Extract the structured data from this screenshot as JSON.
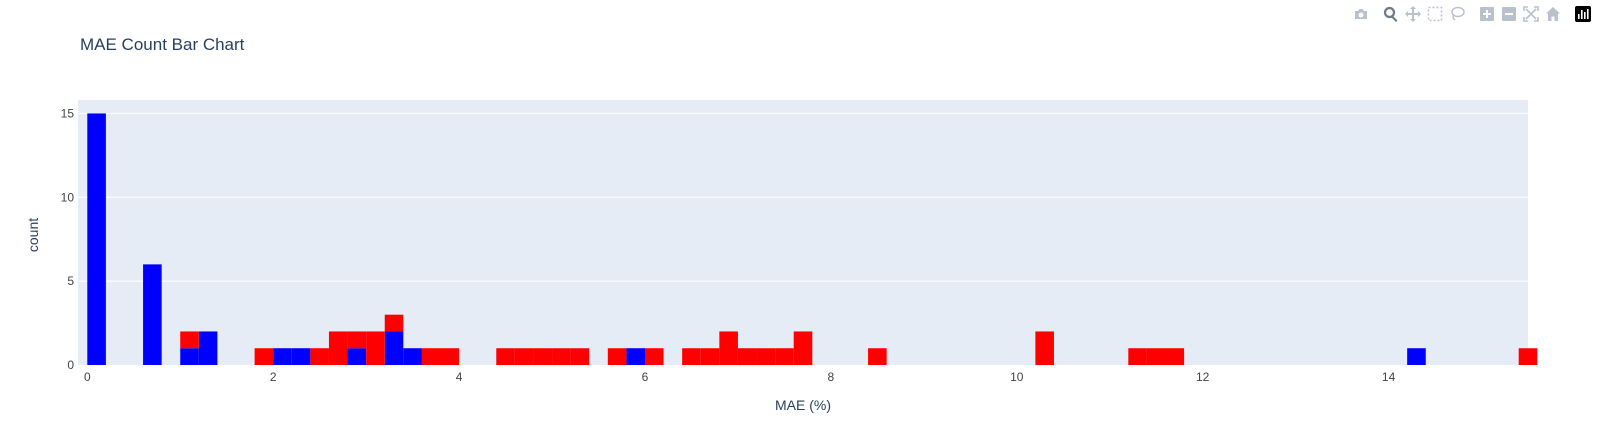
{
  "chart_data": {
    "type": "bar",
    "title": "MAE Count Bar Chart",
    "xlabel": "MAE (%)",
    "ylabel": "count",
    "xlim": [
      -0.1,
      15.5
    ],
    "ylim": [
      0,
      15.8
    ],
    "x_ticks": [
      0,
      2,
      4,
      6,
      8,
      10,
      12,
      14
    ],
    "y_ticks": [
      0,
      5,
      10,
      15
    ],
    "bin_width": 0.2,
    "barmode": "stack",
    "grid": true,
    "series": [
      {
        "color": "#0000ff",
        "bins": [
          {
            "x": 0.0,
            "y": 15
          },
          {
            "x": 0.6,
            "y": 6
          },
          {
            "x": 1.0,
            "y": 1
          },
          {
            "x": 1.2,
            "y": 2
          },
          {
            "x": 2.0,
            "y": 1
          },
          {
            "x": 2.2,
            "y": 1
          },
          {
            "x": 2.8,
            "y": 1
          },
          {
            "x": 3.2,
            "y": 2
          },
          {
            "x": 3.4,
            "y": 1
          },
          {
            "x": 5.8,
            "y": 1
          },
          {
            "x": 14.2,
            "y": 1
          }
        ]
      },
      {
        "color": "#ff0000",
        "bins": [
          {
            "x": 1.0,
            "y": 1
          },
          {
            "x": 1.8,
            "y": 1
          },
          {
            "x": 2.4,
            "y": 1
          },
          {
            "x": 2.6,
            "y": 2
          },
          {
            "x": 2.8,
            "y": 1
          },
          {
            "x": 3.0,
            "y": 2
          },
          {
            "x": 3.2,
            "y": 1
          },
          {
            "x": 3.6,
            "y": 1
          },
          {
            "x": 3.8,
            "y": 1
          },
          {
            "x": 4.4,
            "y": 1
          },
          {
            "x": 4.6,
            "y": 1
          },
          {
            "x": 4.8,
            "y": 1
          },
          {
            "x": 5.0,
            "y": 1
          },
          {
            "x": 5.2,
            "y": 1
          },
          {
            "x": 5.6,
            "y": 1
          },
          {
            "x": 6.0,
            "y": 1
          },
          {
            "x": 6.4,
            "y": 1
          },
          {
            "x": 6.6,
            "y": 1
          },
          {
            "x": 6.8,
            "y": 2
          },
          {
            "x": 7.0,
            "y": 1
          },
          {
            "x": 7.2,
            "y": 1
          },
          {
            "x": 7.4,
            "y": 1
          },
          {
            "x": 7.6,
            "y": 2
          },
          {
            "x": 8.4,
            "y": 1
          },
          {
            "x": 10.2,
            "y": 2
          },
          {
            "x": 11.2,
            "y": 1
          },
          {
            "x": 11.4,
            "y": 1
          },
          {
            "x": 11.6,
            "y": 1
          },
          {
            "x": 15.4,
            "y": 1
          }
        ]
      }
    ],
    "colors": {
      "plot_bg": "#e5ecf6",
      "grid": "#ffffff",
      "text": "#2a3f5f",
      "tick_text": "#444444",
      "modebar_icon": "#b9c2cc",
      "modebar_active": "#6f7a87"
    }
  },
  "modebar": {
    "buttons": [
      {
        "name": "camera-icon"
      },
      {
        "name": "zoom-icon"
      },
      {
        "name": "pan-icon"
      },
      {
        "name": "box-select-icon"
      },
      {
        "name": "lasso-select-icon"
      },
      {
        "name": "zoom-in-icon"
      },
      {
        "name": "zoom-out-icon"
      },
      {
        "name": "autoscale-icon"
      },
      {
        "name": "reset-axes-icon"
      },
      {
        "name": "plotly-logo-icon"
      }
    ]
  }
}
